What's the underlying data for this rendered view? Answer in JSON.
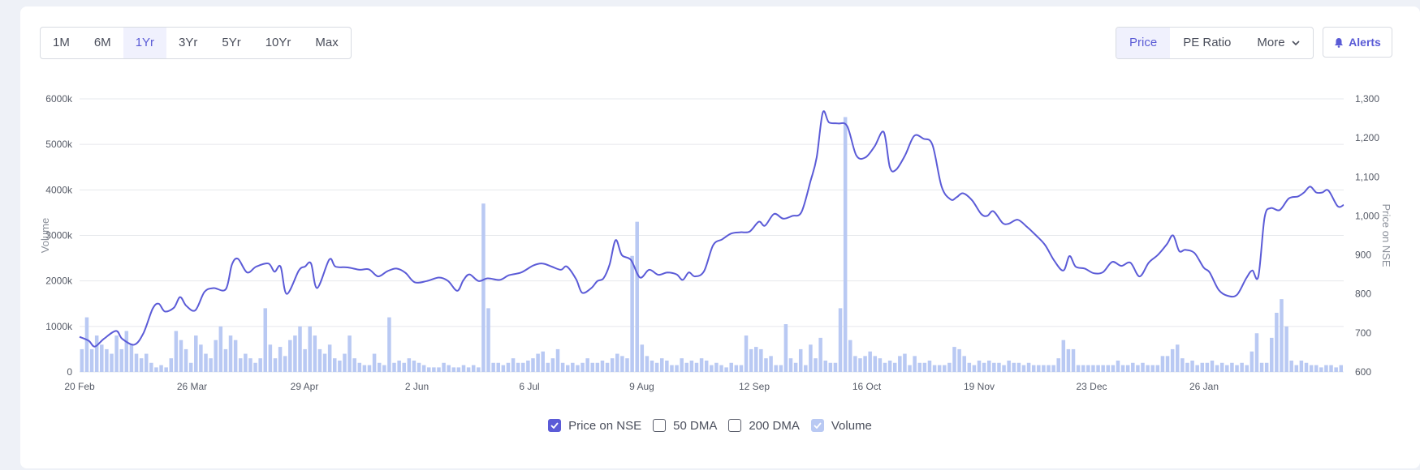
{
  "range_tabs": [
    {
      "label": "1M",
      "active": false
    },
    {
      "label": "6M",
      "active": false
    },
    {
      "label": "1Yr",
      "active": true
    },
    {
      "label": "3Yr",
      "active": false
    },
    {
      "label": "5Yr",
      "active": false
    },
    {
      "label": "10Yr",
      "active": false
    },
    {
      "label": "Max",
      "active": false
    }
  ],
  "view_tabs": {
    "price": "Price",
    "pe": "PE Ratio",
    "more": "More"
  },
  "alerts_label": "Alerts",
  "legend": [
    {
      "label": "Price on NSE",
      "checked": true
    },
    {
      "label": "50 DMA",
      "checked": false
    },
    {
      "label": "200 DMA",
      "checked": false
    },
    {
      "label": "Volume",
      "checked": true
    }
  ],
  "colors": {
    "price_line": "#5b5bd7",
    "volume_bar": "#b9c9f3",
    "grid": "#e6e8ec"
  },
  "chart_data": {
    "type": "line",
    "x_tick_labels": [
      "20 Feb",
      "26 Mar",
      "29 Apr",
      "2 Jun",
      "6 Jul",
      "9 Aug",
      "12 Sep",
      "16 Oct",
      "19 Nov",
      "23 Dec",
      "26 Jan"
    ],
    "y_left": {
      "label": "Volume",
      "ticks": [
        "0",
        "1000k",
        "2000k",
        "3000k",
        "4000k",
        "5000k",
        "6000k"
      ],
      "range": [
        0,
        6000
      ]
    },
    "y_right": {
      "label": "Price on NSE",
      "ticks": [
        "600",
        "700",
        "800",
        "900",
        "1,000",
        "1,100",
        "1,200",
        "1,300"
      ],
      "range": [
        600,
        1300
      ]
    },
    "grid": true,
    "legend_position": "bottom",
    "series": [
      {
        "name": "Price on NSE",
        "points": [
          [
            0,
            690
          ],
          [
            3,
            680
          ],
          [
            5,
            665
          ],
          [
            8,
            685
          ],
          [
            12,
            705
          ],
          [
            14,
            685
          ],
          [
            18,
            670
          ],
          [
            21,
            700
          ],
          [
            24,
            762
          ],
          [
            26,
            775
          ],
          [
            28,
            755
          ],
          [
            31,
            765
          ],
          [
            33,
            792
          ],
          [
            35,
            770
          ],
          [
            38,
            758
          ],
          [
            41,
            805
          ],
          [
            44,
            815
          ],
          [
            48,
            812
          ],
          [
            50,
            875
          ],
          [
            52,
            890
          ],
          [
            55,
            855
          ],
          [
            58,
            870
          ],
          [
            62,
            878
          ],
          [
            64,
            857
          ],
          [
            66,
            870
          ],
          [
            68,
            800
          ],
          [
            72,
            860
          ],
          [
            74,
            870
          ],
          [
            76,
            878
          ],
          [
            78,
            815
          ],
          [
            82,
            888
          ],
          [
            84,
            870
          ],
          [
            88,
            868
          ],
          [
            92,
            862
          ],
          [
            95,
            863
          ],
          [
            98,
            845
          ],
          [
            101,
            858
          ],
          [
            104,
            865
          ],
          [
            107,
            854
          ],
          [
            110,
            830
          ],
          [
            114,
            833
          ],
          [
            118,
            842
          ],
          [
            121,
            833
          ],
          [
            124,
            808
          ],
          [
            126,
            835
          ],
          [
            128,
            850
          ],
          [
            131,
            833
          ],
          [
            134,
            840
          ],
          [
            138,
            836
          ],
          [
            141,
            848
          ],
          [
            145,
            855
          ],
          [
            149,
            873
          ],
          [
            152,
            878
          ],
          [
            155,
            870
          ],
          [
            158,
            862
          ],
          [
            160,
            870
          ],
          [
            163,
            838
          ],
          [
            165,
            803
          ],
          [
            168,
            815
          ],
          [
            170,
            833
          ],
          [
            172,
            840
          ],
          [
            174,
            875
          ],
          [
            176,
            938
          ],
          [
            178,
            900
          ],
          [
            181,
            887
          ],
          [
            184,
            842
          ],
          [
            187,
            862
          ],
          [
            190,
            849
          ],
          [
            193,
            855
          ],
          [
            196,
            850
          ],
          [
            198,
            836
          ],
          [
            200,
            855
          ],
          [
            202,
            845
          ],
          [
            205,
            858
          ],
          [
            208,
            925
          ],
          [
            211,
            940
          ],
          [
            214,
            955
          ],
          [
            217,
            958
          ],
          [
            220,
            960
          ],
          [
            223,
            985
          ],
          [
            225,
            975
          ],
          [
            228,
            1005
          ],
          [
            231,
            993
          ],
          [
            234,
            1000
          ],
          [
            237,
            1010
          ],
          [
            240,
            1090
          ],
          [
            242,
            1150
          ],
          [
            244,
            1265
          ],
          [
            246,
            1240
          ],
          [
            249,
            1237
          ],
          [
            252,
            1230
          ],
          [
            255,
            1155
          ],
          [
            258,
            1150
          ],
          [
            261,
            1178
          ],
          [
            264,
            1215
          ],
          [
            266,
            1125
          ],
          [
            268,
            1118
          ],
          [
            271,
            1155
          ],
          [
            274,
            1205
          ],
          [
            277,
            1198
          ],
          [
            280,
            1182
          ],
          [
            283,
            1075
          ],
          [
            286,
            1042
          ],
          [
            288,
            1048
          ],
          [
            290,
            1058
          ],
          [
            293,
            1040
          ],
          [
            296,
            1005
          ],
          [
            298,
            1000
          ],
          [
            300,
            1012
          ],
          [
            303,
            982
          ],
          [
            305,
            980
          ],
          [
            308,
            990
          ],
          [
            311,
            972
          ],
          [
            314,
            950
          ],
          [
            317,
            925
          ],
          [
            320,
            885
          ],
          [
            323,
            860
          ],
          [
            325,
            897
          ],
          [
            327,
            870
          ],
          [
            330,
            865
          ],
          [
            333,
            853
          ],
          [
            336,
            856
          ],
          [
            339,
            882
          ],
          [
            342,
            872
          ],
          [
            345,
            880
          ],
          [
            348,
            845
          ],
          [
            351,
            880
          ],
          [
            354,
            900
          ],
          [
            357,
            928
          ],
          [
            359,
            950
          ],
          [
            361,
            910
          ],
          [
            363,
            913
          ],
          [
            366,
            905
          ],
          [
            369,
            868
          ],
          [
            371,
            855
          ],
          [
            374,
            810
          ],
          [
            377,
            795
          ],
          [
            380,
            798
          ],
          [
            383,
            840
          ],
          [
            385,
            860
          ],
          [
            387,
            845
          ],
          [
            389,
            995
          ],
          [
            391,
            1020
          ],
          [
            394,
            1015
          ],
          [
            397,
            1045
          ],
          [
            400,
            1050
          ],
          [
            402,
            1060
          ],
          [
            404,
            1075
          ],
          [
            406,
            1060
          ],
          [
            408,
            1060
          ],
          [
            410,
            1065
          ],
          [
            413,
            1025
          ],
          [
            415,
            1028
          ]
        ]
      },
      {
        "name": "Volume",
        "values": [
          500,
          1200,
          500,
          800,
          600,
          500,
          400,
          800,
          500,
          900,
          600,
          400,
          300,
          400,
          200,
          100,
          150,
          100,
          300,
          900,
          700,
          500,
          200,
          800,
          600,
          400,
          300,
          700,
          1000,
          500,
          800,
          700,
          300,
          400,
          300,
          200,
          300,
          1400,
          600,
          300,
          550,
          350,
          700,
          800,
          1000,
          500,
          1000,
          800,
          500,
          400,
          600,
          300,
          250,
          400,
          800,
          300,
          200,
          150,
          150,
          400,
          200,
          150,
          1200,
          200,
          250,
          200,
          300,
          250,
          200,
          150,
          100,
          100,
          100,
          200,
          150,
          100,
          100,
          150,
          100,
          150,
          100,
          3700,
          1400,
          200,
          200,
          150,
          200,
          300,
          200,
          200,
          250,
          300,
          400,
          450,
          200,
          300,
          500,
          200,
          150,
          200,
          150,
          200,
          300,
          200,
          200,
          250,
          200,
          300,
          400,
          350,
          300,
          2550,
          3300,
          600,
          350,
          250,
          200,
          300,
          250,
          150,
          150,
          300,
          200,
          250,
          200,
          300,
          250,
          150,
          200,
          150,
          100,
          200,
          150,
          150,
          800,
          500,
          550,
          500,
          300,
          350,
          150,
          150,
          1050,
          300,
          200,
          500,
          150,
          600,
          300,
          750,
          250,
          200,
          200,
          1400,
          5600,
          700,
          350,
          300,
          350,
          450,
          350,
          300,
          200,
          250,
          200,
          350,
          400,
          150,
          350,
          200,
          200,
          250,
          150,
          150,
          150,
          200,
          550,
          500,
          350,
          200,
          150,
          250,
          200,
          250,
          200,
          200,
          150,
          250,
          200,
          200,
          150,
          200,
          150,
          150,
          150,
          150,
          150,
          300,
          700,
          500,
          500,
          150,
          150,
          150,
          150,
          150,
          150,
          150,
          150,
          250,
          150,
          150,
          200,
          150,
          200,
          150,
          150,
          150,
          350,
          350,
          500,
          600,
          300,
          200,
          250,
          150,
          200,
          200,
          250,
          150,
          200,
          150,
          200,
          150,
          200,
          150,
          450,
          850,
          200,
          200,
          750,
          1300,
          1600,
          1000,
          250,
          150,
          250,
          200,
          150,
          150,
          100,
          150,
          150,
          100,
          150
        ]
      }
    ]
  }
}
